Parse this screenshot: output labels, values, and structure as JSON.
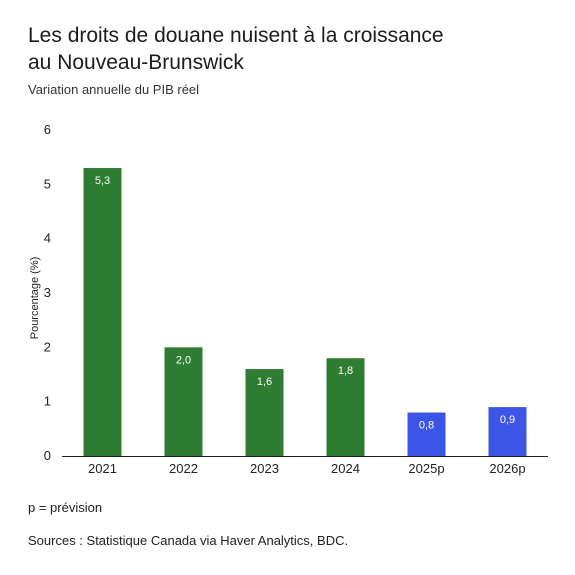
{
  "title_line1": "Les droits de douane nuisent à la croissance",
  "title_line2": "au Nouveau-Brunswick",
  "subtitle": "Variation annuelle du PIB réel",
  "footnote": "p = prévision",
  "source": "Sources : Statistique Canada via Haver Analytics, BDC.",
  "colors": {
    "actual": "#2e7d32",
    "forecast": "#3b55e6",
    "axis": "#222222"
  },
  "chart_data": {
    "type": "bar",
    "categories": [
      "2021",
      "2022",
      "2023",
      "2024",
      "2025p",
      "2026p"
    ],
    "values": [
      5.3,
      2.0,
      1.6,
      1.8,
      0.8,
      0.9
    ],
    "value_labels": [
      "5,3",
      "2,0",
      "1,6",
      "1,8",
      "0,8",
      "0,9"
    ],
    "forecast": [
      false,
      false,
      false,
      false,
      true,
      true
    ],
    "ylabel": "Pourcentage (%)",
    "ylim": [
      0,
      6
    ],
    "yticks": [
      0,
      1,
      2,
      3,
      4,
      5,
      6
    ],
    "grid": false
  }
}
